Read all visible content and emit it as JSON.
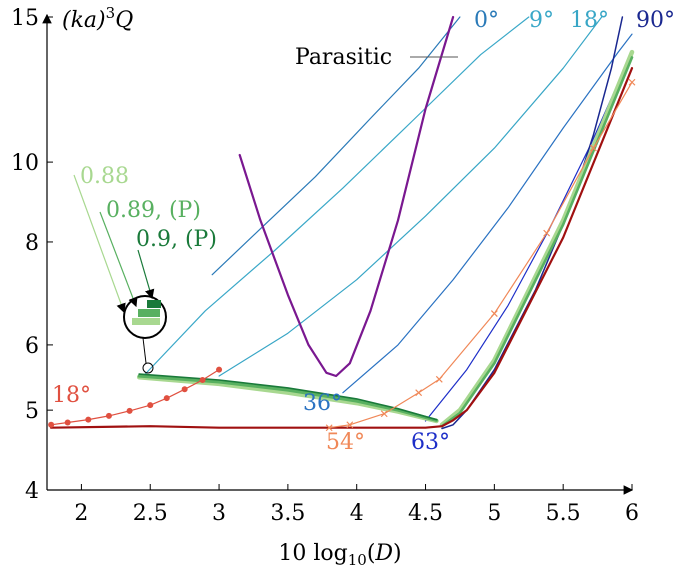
{
  "chart_data": {
    "type": "line",
    "xlabel": "10 log10(D)",
    "ylabel": "(ka)^3 Q",
    "xlim": [
      1.75,
      6.0
    ],
    "ylim": [
      4,
      15
    ],
    "y_scale": "log",
    "grid": false,
    "x_ticks": [
      {
        "value": 2,
        "label": "2"
      },
      {
        "value": 2.5,
        "label": "2.5"
      },
      {
        "value": 3,
        "label": "3"
      },
      {
        "value": 3.5,
        "label": "3.5"
      },
      {
        "value": 4,
        "label": "4"
      },
      {
        "value": 4.5,
        "label": "4.5"
      },
      {
        "value": 5,
        "label": "5"
      },
      {
        "value": 5.5,
        "label": "5.5"
      },
      {
        "value": 6,
        "label": "6"
      }
    ],
    "y_ticks": [
      {
        "value": 4,
        "label": "4"
      },
      {
        "value": 5,
        "label": "5"
      },
      {
        "value": 6,
        "label": "6"
      },
      {
        "value": 8,
        "label": "8"
      },
      {
        "value": 10,
        "label": "10"
      },
      {
        "value": 15,
        "label": "15"
      }
    ],
    "series": [
      {
        "key": "angle-0",
        "color": "#2a7ab8",
        "width": 1.2,
        "x": [
          2.95,
          3.3,
          3.7,
          4.1,
          4.45,
          4.75
        ],
        "y": [
          7.3,
          8.3,
          9.6,
          11.3,
          13.0,
          15.0
        ]
      },
      {
        "key": "angle-9",
        "color": "#3aa8c8",
        "width": 1.2,
        "x": [
          2.45,
          2.9,
          3.4,
          3.9,
          4.4,
          4.9,
          5.25
        ],
        "y": [
          5.5,
          6.6,
          7.8,
          9.3,
          11.2,
          13.5,
          15.0
        ]
      },
      {
        "key": "angle-18",
        "color": "#38a6c6",
        "width": 1.2,
        "x": [
          3.0,
          3.5,
          4.0,
          4.5,
          5.0,
          5.5,
          5.78
        ],
        "y": [
          5.5,
          6.2,
          7.2,
          8.6,
          10.4,
          13.0,
          15.0
        ]
      },
      {
        "key": "angle-36",
        "color": "#2a72c2",
        "width": 1.2,
        "x": [
          3.9,
          4.3,
          4.7,
          5.1,
          5.5,
          5.9,
          6.0
        ],
        "y": [
          5.25,
          6.0,
          7.2,
          8.8,
          11.0,
          13.6,
          14.3
        ]
      },
      {
        "key": "angle-63",
        "color": "#1d2ec8",
        "width": 1.2,
        "x": [
          4.5,
          4.8,
          5.1,
          5.4,
          5.7,
          6.0
        ],
        "y": [
          4.85,
          5.6,
          6.7,
          8.3,
          10.5,
          13.6
        ]
      },
      {
        "key": "angle-90",
        "color": "#1a2890",
        "width": 1.5,
        "x": [
          4.62,
          4.7,
          4.8,
          5.0,
          5.3,
          5.55,
          5.72,
          5.85,
          5.93
        ],
        "y": [
          4.75,
          4.8,
          5.0,
          5.6,
          7.0,
          8.8,
          10.8,
          13.0,
          15.0
        ]
      },
      {
        "key": "parasitic",
        "color": "#7a1890",
        "width": 2.2,
        "x": [
          3.15,
          3.3,
          3.5,
          3.65,
          3.78,
          3.85,
          3.95,
          4.1,
          4.3,
          4.5,
          4.7
        ],
        "y": [
          10.2,
          8.5,
          6.9,
          6.0,
          5.55,
          5.5,
          5.7,
          6.6,
          8.5,
          11.6,
          15.0
        ]
      },
      {
        "key": "band-088",
        "color": "#a8d890",
        "width": 4.5,
        "x": [
          2.42,
          3.0,
          3.5,
          4.0,
          4.3,
          4.58
        ],
        "y": [
          5.48,
          5.38,
          5.25,
          5.1,
          4.98,
          4.85
        ]
      },
      {
        "key": "band-089",
        "color": "#58b060",
        "width": 3.2,
        "x": [
          2.42,
          3.0,
          3.5,
          4.0,
          4.3,
          4.58
        ],
        "y": [
          5.5,
          5.41,
          5.29,
          5.13,
          5.0,
          4.86
        ]
      },
      {
        "key": "band-09",
        "color": "#1a7a3a",
        "width": 1.6,
        "x": [
          2.42,
          3.0,
          3.5,
          4.0,
          4.3,
          4.58
        ],
        "y": [
          5.53,
          5.44,
          5.32,
          5.16,
          5.02,
          4.87
        ]
      },
      {
        "key": "bound-light",
        "color": "#a8d890",
        "width": 4.5,
        "x": [
          4.62,
          4.75,
          5.0,
          5.5,
          6.0
        ],
        "y": [
          4.8,
          5.0,
          5.75,
          8.5,
          13.6
        ]
      },
      {
        "key": "bound-mid",
        "color": "#58b060",
        "width": 2.6,
        "x": [
          4.62,
          4.75,
          5.0,
          5.5,
          6.0
        ],
        "y": [
          4.78,
          4.96,
          5.7,
          8.4,
          13.4
        ]
      },
      {
        "key": "bound-red",
        "color": "#a01010",
        "width": 2.2,
        "x": [
          1.78,
          2.5,
          3.0,
          3.5,
          4.0,
          4.5,
          4.62,
          4.7,
          4.8,
          5.0,
          5.5,
          6.0
        ],
        "y": [
          4.76,
          4.78,
          4.76,
          4.76,
          4.76,
          4.76,
          4.78,
          4.86,
          5.0,
          5.55,
          8.1,
          13.0
        ]
      },
      {
        "key": "angle-18-dots",
        "color": "#e05040",
        "width": 1.2,
        "marker": "dot",
        "x": [
          1.78,
          1.9,
          2.05,
          2.2,
          2.35,
          2.5,
          2.62,
          2.75,
          2.88,
          3.0
        ],
        "y": [
          4.8,
          4.83,
          4.87,
          4.92,
          4.99,
          5.07,
          5.17,
          5.3,
          5.44,
          5.6
        ]
      },
      {
        "key": "angle-54-cross",
        "color": "#f08858",
        "width": 1.2,
        "marker": "cross",
        "x": [
          3.8,
          3.95,
          4.2,
          4.45,
          4.6,
          5.0,
          5.38,
          5.72,
          6.0
        ],
        "y": [
          4.76,
          4.8,
          4.95,
          5.25,
          5.45,
          6.55,
          8.2,
          10.4,
          12.5
        ]
      }
    ],
    "annotations": [
      {
        "key": "ann-0",
        "text": "0°",
        "color": "#2a7ab8"
      },
      {
        "key": "ann-9",
        "text": "9°",
        "color": "#3aa8c8"
      },
      {
        "key": "ann-18-top",
        "text": "18°",
        "color": "#38a6c6"
      },
      {
        "key": "ann-90",
        "text": "90°",
        "color": "#1a2890"
      },
      {
        "key": "ann-parasitic",
        "text": "Parasitic",
        "color": "#000000"
      },
      {
        "key": "ann-088",
        "text": "0.88",
        "color": "#a8d890"
      },
      {
        "key": "ann-089",
        "text": "0.89, (P)",
        "color": "#58b060"
      },
      {
        "key": "ann-09",
        "text": "0.9, (P)",
        "color": "#1a7a3a"
      },
      {
        "key": "ann-18-left",
        "text": "18°",
        "color": "#e05040"
      },
      {
        "key": "ann-36",
        "text": "36°",
        "color": "#2a72c2"
      },
      {
        "key": "ann-54",
        "text": "54°",
        "color": "#f08858"
      },
      {
        "key": "ann-63",
        "text": "63°",
        "color": "#1d2ec8"
      }
    ]
  }
}
